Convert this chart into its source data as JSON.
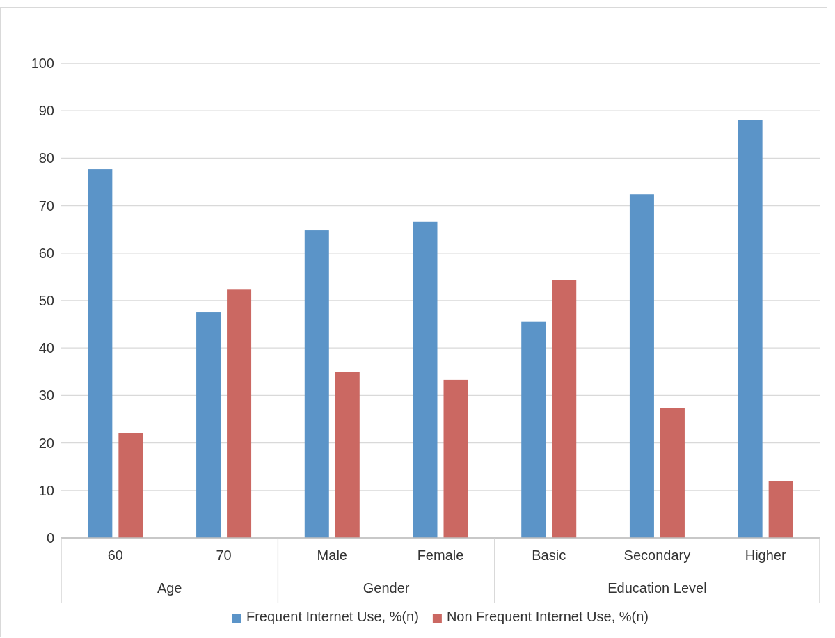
{
  "chart_data": {
    "type": "bar",
    "categories": [
      "60",
      "70",
      "Male",
      "Female",
      "Basic",
      "Secondary",
      "Higher"
    ],
    "series": [
      {
        "name": "Frequent Internet Use, %(n)",
        "color": "#5b94c8",
        "values": [
          77.7,
          47.5,
          64.8,
          66.6,
          45.5,
          72.4,
          88.0
        ]
      },
      {
        "name": "Non Frequent Internet Use, %(n)",
        "color": "#cb6862",
        "values": [
          22.1,
          52.3,
          34.9,
          33.3,
          54.3,
          27.4,
          12.0
        ]
      }
    ],
    "annotations": [
      "Age",
      "Gender",
      "Education Level"
    ],
    "ylim": [
      0,
      100
    ],
    "yticks": [
      0,
      10,
      20,
      30,
      40,
      50,
      60,
      70,
      80,
      90,
      100
    ],
    "grid": "y",
    "legend": "bottom"
  }
}
